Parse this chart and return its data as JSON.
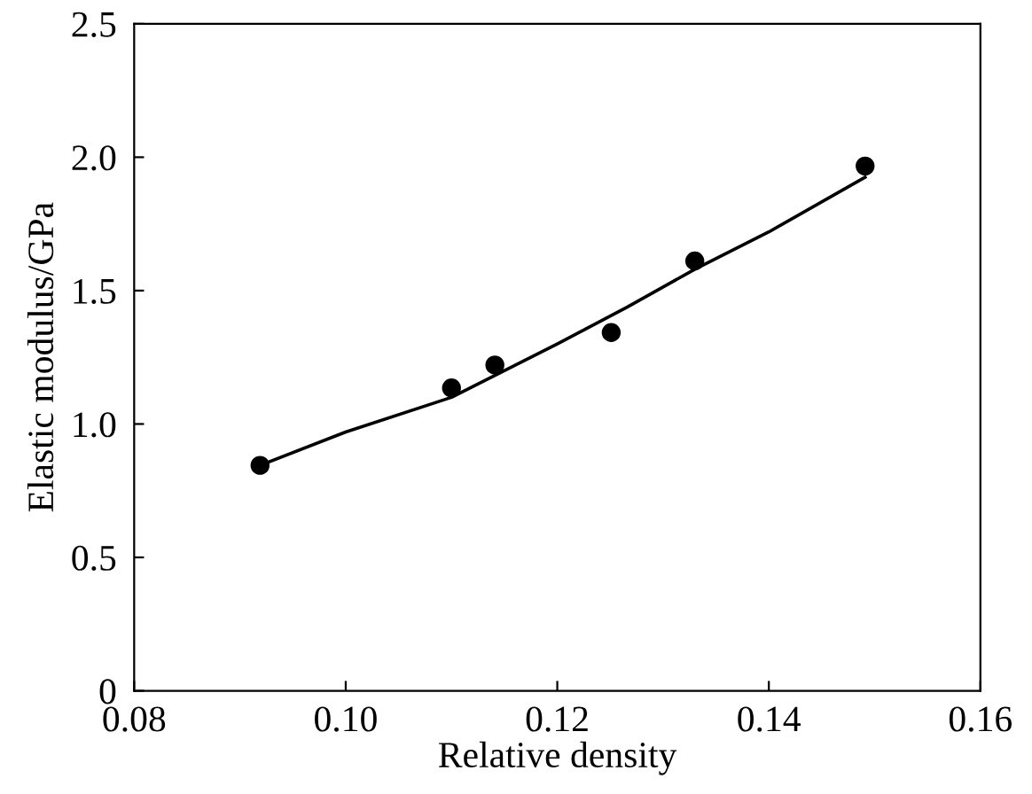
{
  "chart_data": {
    "type": "scatter",
    "xlabel": "Relative density",
    "ylabel": "Elastic modulus/GPa",
    "series": [
      {
        "color": "#000000",
        "marker": "circle",
        "x": [
          0.0919,
          0.11,
          0.1141,
          0.1251,
          0.133,
          0.1491
        ],
        "values": [
          0.845,
          1.135,
          1.221,
          1.343,
          1.611,
          1.967
        ]
      },
      {
        "type": "line",
        "color": "#000000",
        "marker": "none",
        "line_style": "solid",
        "x": [
          0.0919,
          0.1,
          0.11,
          0.12,
          0.1266,
          0.133,
          0.14,
          0.1491
        ],
        "values": [
          0.845,
          0.97,
          1.1,
          1.3,
          1.438,
          1.58,
          1.72,
          1.925
        ]
      }
    ],
    "xlim": [
      0.08,
      0.16
    ],
    "xticks": [
      {
        "value": 0.08,
        "label": "0.08"
      },
      {
        "value": 0.1,
        "label": "0.10"
      },
      {
        "value": 0.12,
        "label": "0.12"
      },
      {
        "value": 0.14,
        "label": "0.14"
      },
      {
        "value": 0.16,
        "label": "0.16"
      }
    ],
    "ylim": [
      0,
      2.5
    ],
    "yticks": [
      0,
      {
        "value": 0.5,
        "label": "0.5"
      },
      {
        "value": 1.0,
        "label": "1.0"
      },
      {
        "value": 1.5,
        "label": "1.5"
      },
      {
        "value": 2.0,
        "label": "2.0"
      },
      {
        "value": 2.5,
        "label": "2.5"
      }
    ],
    "grid": false,
    "legend": false
  }
}
